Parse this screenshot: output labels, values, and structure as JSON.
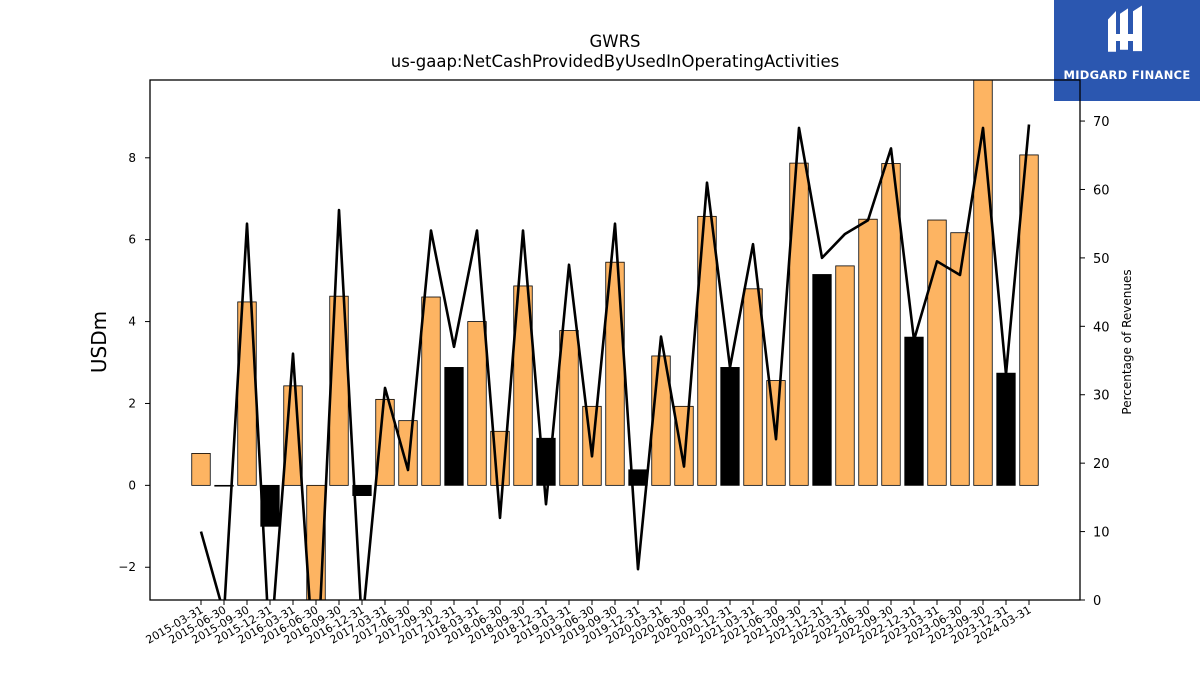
{
  "title": "GWRS",
  "subtitle": "us-gaap:NetCashProvidedByUsedInOperatingActivities",
  "logo": {
    "text": "MIDGARD FINANCE",
    "icon": "midgard-logo-icon",
    "background": "#2b57b0"
  },
  "colors": {
    "positive_bar": "#fdb462",
    "highlight_bar": "#000000",
    "line": "#000000"
  },
  "chart_data": {
    "type": "bar",
    "ylabel": "USDm",
    "y2label": "Percentage of Revenues",
    "ylim": [
      -2.8,
      9.9
    ],
    "y2lim": [
      0,
      76
    ],
    "yticks": [
      -2,
      0,
      2,
      4,
      6,
      8
    ],
    "y2ticks": [
      0,
      10,
      20,
      30,
      40,
      50,
      60,
      70
    ],
    "grid": false,
    "categories": [
      "2015-03-31",
      "2015-06-30",
      "2015-09-30",
      "2015-12-31",
      "2016-03-31",
      "2016-06-30",
      "2016-09-30",
      "2016-12-31",
      "2017-03-31",
      "2017-06-30",
      "2017-09-30",
      "2017-12-31",
      "2018-03-31",
      "2018-06-30",
      "2018-09-30",
      "2018-12-31",
      "2019-03-31",
      "2019-06-30",
      "2019-09-30",
      "2019-12-31",
      "2020-03-31",
      "2020-06-30",
      "2020-09-30",
      "2020-12-31",
      "2021-03-31",
      "2021-06-30",
      "2021-09-30",
      "2021-12-31",
      "2022-03-31",
      "2022-06-30",
      "2022-09-30",
      "2022-12-31",
      "2023-03-31",
      "2023-06-30",
      "2023-09-30",
      "2023-12-31",
      "2024-03-31"
    ],
    "series": [
      {
        "type": "bar",
        "values": [
          0.78,
          0.0,
          4.48,
          -1.0,
          2.43,
          -3.2,
          4.62,
          -0.25,
          2.1,
          1.58,
          4.6,
          2.88,
          4.0,
          1.32,
          4.87,
          1.15,
          3.78,
          1.93,
          5.45,
          0.38,
          3.16,
          1.93,
          6.57,
          2.88,
          4.8,
          2.56,
          7.87,
          5.15,
          5.36,
          6.5,
          7.86,
          3.62,
          6.48,
          6.17,
          10.2,
          2.74,
          8.07
        ],
        "highlighted": [
          false,
          false,
          false,
          true,
          false,
          false,
          false,
          true,
          false,
          false,
          false,
          true,
          false,
          false,
          false,
          true,
          false,
          false,
          false,
          true,
          false,
          false,
          false,
          true,
          false,
          false,
          false,
          true,
          false,
          false,
          false,
          true,
          false,
          false,
          false,
          true,
          false
        ]
      },
      {
        "type": "line",
        "axis": "right",
        "values": [
          10,
          -2,
          55,
          -8,
          36,
          -14,
          57,
          -4,
          31,
          19,
          54,
          37,
          54,
          12,
          54,
          14,
          49,
          21,
          55,
          4.5,
          38.5,
          19.5,
          61,
          34,
          52,
          23.5,
          69,
          50,
          53.5,
          55.5,
          66,
          38,
          49.5,
          47.5,
          69,
          33,
          69.5
        ]
      }
    ]
  }
}
